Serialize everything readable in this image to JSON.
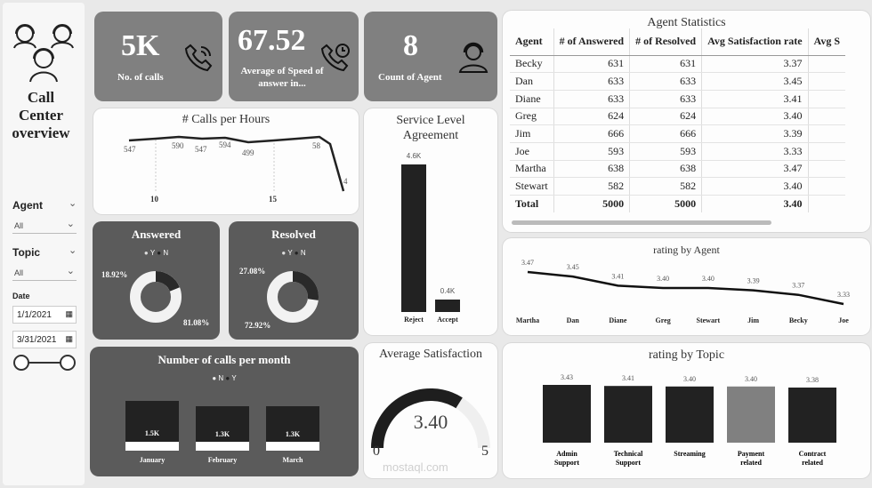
{
  "sidebar": {
    "title_lines": [
      "Call",
      "Center",
      "overview"
    ],
    "agent_label": "Agent",
    "agent_value": "All",
    "topic_label": "Topic",
    "topic_value": "All",
    "date_label": "Date",
    "date_from": "1/1/2021",
    "date_to": "3/31/2021"
  },
  "kpis": [
    {
      "value": "5K",
      "label": "No. of calls",
      "icon": "phone-icon"
    },
    {
      "value": "67.52",
      "label": "Average of Speed of answer in...",
      "icon": "phone-clock-icon"
    },
    {
      "value": "8",
      "label": "Count of Agent",
      "icon": "headset-agent-icon"
    }
  ],
  "calls_per_hour": {
    "title": "# Calls per Hours",
    "point_labels": [
      "547",
      "590",
      "547",
      "594",
      "499",
      "58",
      "4"
    ],
    "x_ticks": [
      "10",
      "15"
    ],
    "chart_data": {
      "type": "line",
      "values": [
        547,
        560,
        590,
        570,
        547,
        594,
        580,
        499,
        520,
        540,
        560,
        580,
        590,
        575,
        200
      ]
    }
  },
  "answered": {
    "title": "Answered",
    "legend": [
      "Y",
      "N"
    ],
    "pct_n": "18.92%",
    "pct_y": "81.08%",
    "y_fraction": 0.8108
  },
  "resolved": {
    "title": "Resolved",
    "legend": [
      "Y",
      "N"
    ],
    "pct_n": "27.08%",
    "pct_y": "72.92%",
    "y_fraction": 0.7292
  },
  "sla": {
    "title_lines": [
      "Service Level",
      "Agreement"
    ],
    "chart_data": {
      "type": "bar",
      "categories": [
        "Reject",
        "Accept"
      ],
      "values": [
        4600,
        400
      ],
      "labels": [
        "4.6K",
        "0.4K"
      ]
    }
  },
  "calls_per_month": {
    "title": "Number of calls per month",
    "legend": [
      "N",
      "Y"
    ],
    "chart_data": {
      "type": "bar",
      "categories": [
        "January",
        "February",
        "March"
      ],
      "labels": [
        "1.5K",
        "1.3K",
        "1.3K"
      ]
    }
  },
  "avg_satisfaction": {
    "title": "Average Satisfaction",
    "value": "3.40",
    "min": "0",
    "max": "5",
    "fraction": 0.68
  },
  "agent_stats": {
    "title": "Agent Statistics",
    "columns": [
      "Agent",
      "# of Answered",
      "# of Resolved",
      "Avg Satisfaction rate",
      "Avg S"
    ],
    "rows": [
      [
        "Becky",
        "631",
        "631",
        "3.37"
      ],
      [
        "Dan",
        "633",
        "633",
        "3.45"
      ],
      [
        "Diane",
        "633",
        "633",
        "3.41"
      ],
      [
        "Greg",
        "624",
        "624",
        "3.40"
      ],
      [
        "Jim",
        "666",
        "666",
        "3.39"
      ],
      [
        "Joe",
        "593",
        "593",
        "3.33"
      ],
      [
        "Martha",
        "638",
        "638",
        "3.47"
      ],
      [
        "Stewart",
        "582",
        "582",
        "3.40"
      ]
    ],
    "total": [
      "Total",
      "5000",
      "5000",
      "3.40"
    ]
  },
  "rating_agent": {
    "title": "rating by Agent",
    "chart_data": {
      "type": "line",
      "categories": [
        "Martha",
        "Dan",
        "Diane",
        "Greg",
        "Stewart",
        "Jim",
        "Becky",
        "Joe"
      ],
      "values": [
        3.47,
        3.45,
        3.41,
        3.4,
        3.4,
        3.39,
        3.37,
        3.33
      ],
      "labels": [
        "3.47",
        "3.45",
        "3.41",
        "3.40",
        "3.40",
        "3.39",
        "3.37",
        "3.33"
      ]
    }
  },
  "rating_topic": {
    "title": "rating by Topic",
    "chart_data": {
      "type": "bar",
      "categories": [
        [
          "Admin",
          "Support"
        ],
        [
          "Technical",
          "Support"
        ],
        [
          "Streaming"
        ],
        [
          "Payment",
          "related"
        ],
        [
          "Contract",
          "related"
        ]
      ],
      "values": [
        3.43,
        3.41,
        3.4,
        3.4,
        3.38
      ],
      "labels": [
        "3.43",
        "3.41",
        "3.40",
        "3.40",
        "3.38"
      ],
      "colors": [
        "#222222",
        "#222222",
        "#222222",
        "#808080",
        "#222222"
      ]
    }
  },
  "watermark": {
    "text": "mostaql.com"
  }
}
